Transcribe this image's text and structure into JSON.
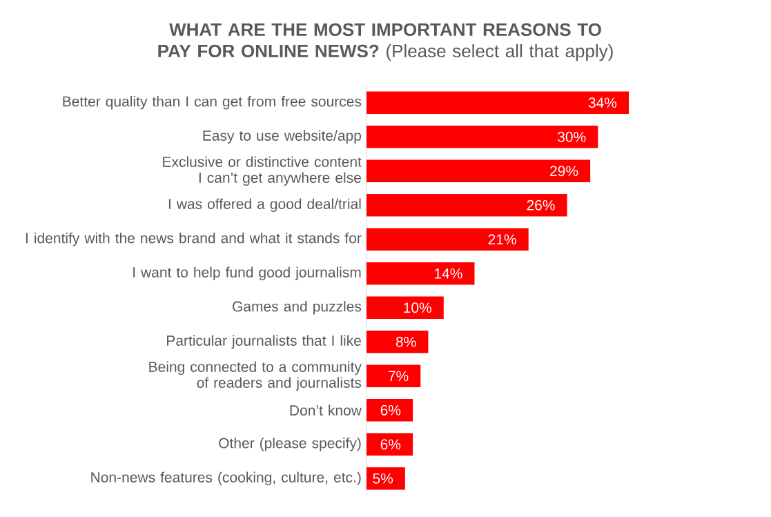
{
  "chart_data": {
    "type": "bar",
    "orientation": "horizontal",
    "title": "**WHAT ARE THE MOST IMPORTANT REASONS TO PAY FOR ONLINE NEWS?** (Please select all that apply)",
    "categories": [
      "Better quality than I can get from free sources",
      "Easy to use website/app",
      "Exclusive or distinctive content I can’t get anywhere else",
      "I was offered a good deal/trial",
      "I identify with the news brand and what it stands for",
      "I want to help fund good journalism",
      "Games and puzzles",
      "Particular journalists that I like",
      "Being connected to a community of readers and journalists",
      "Don’t know",
      "Other (please specify)",
      "Non-news features (cooking, culture, etc.)"
    ],
    "values": [
      34,
      30,
      29,
      26,
      21,
      14,
      10,
      8,
      7,
      6,
      6,
      5
    ],
    "value_labels": [
      "34%",
      "30%",
      "29%",
      "26%",
      "21%",
      "14%",
      "10%",
      "8%",
      "7%",
      "6%",
      "6%",
      "5%"
    ],
    "color": "#ff0000"
  }
}
